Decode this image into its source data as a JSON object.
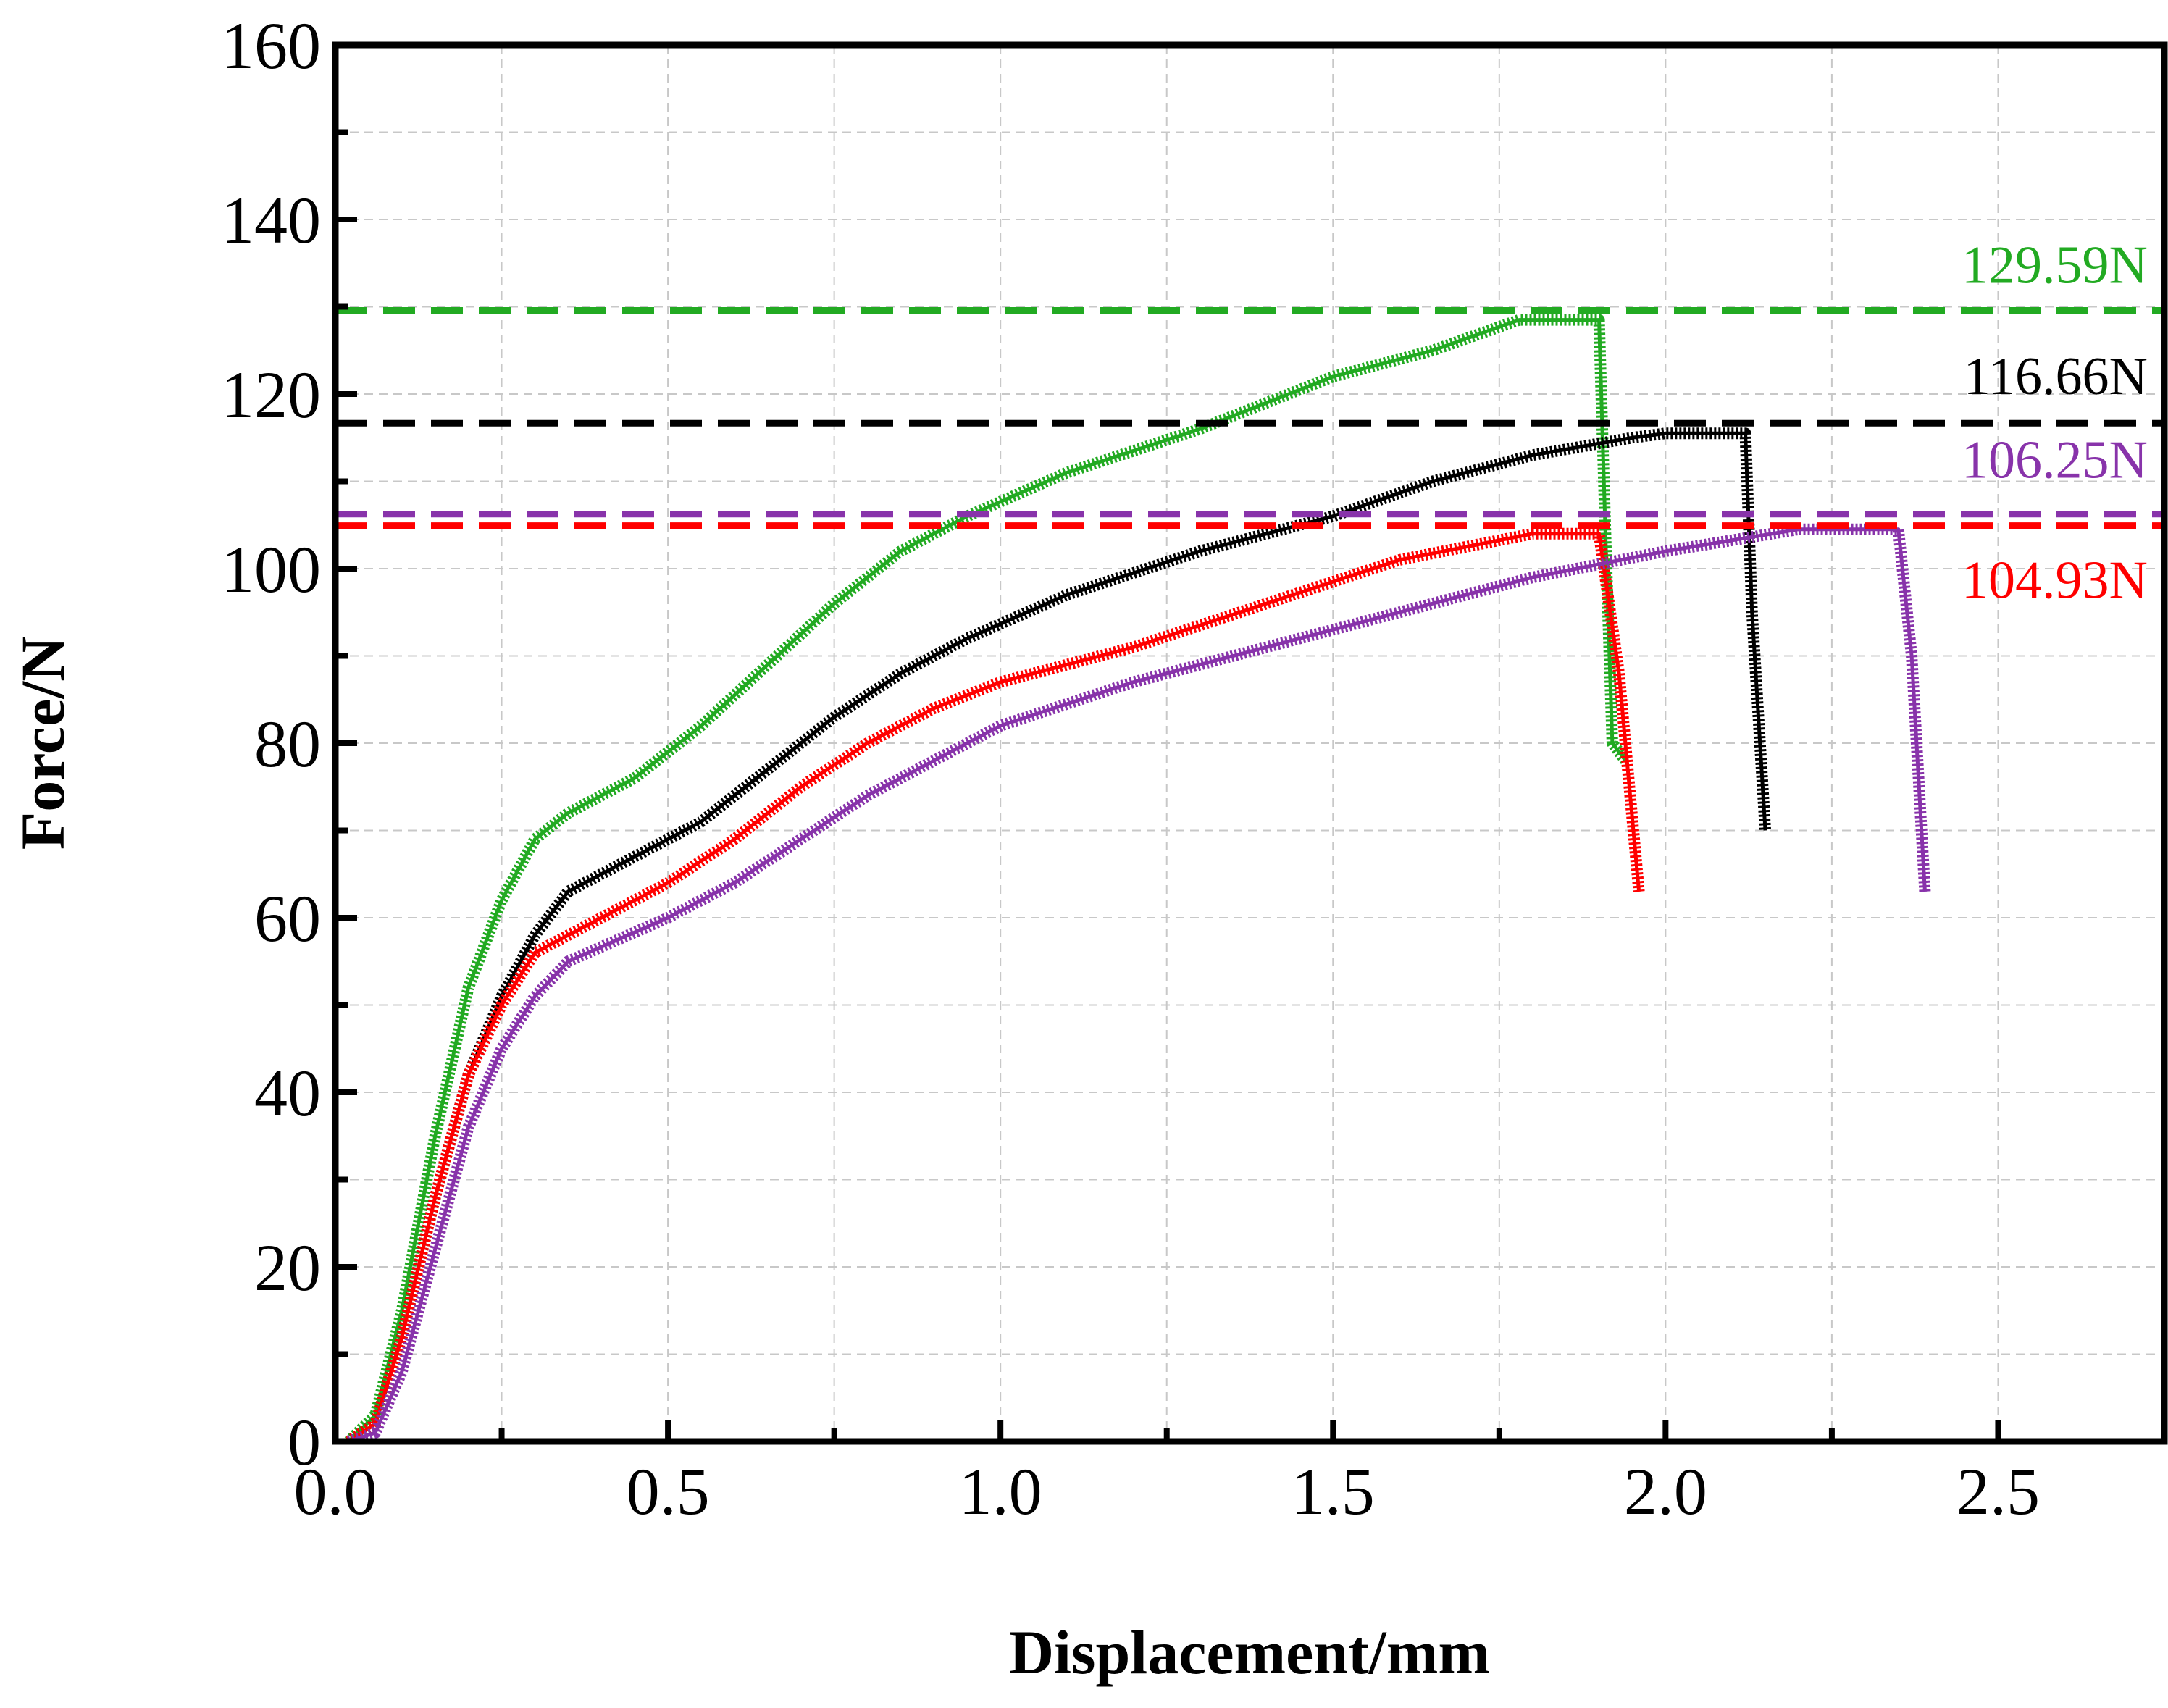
{
  "chart_data": {
    "type": "line",
    "title": "",
    "xlabel": "Displacement/mm",
    "ylabel": "Force/N",
    "xlim": [
      0,
      2.75
    ],
    "ylim": [
      0,
      160
    ],
    "xticks": [
      0.0,
      0.5,
      1.0,
      1.5,
      2.0,
      2.5
    ],
    "xtick_labels": [
      "0.0",
      "0.5",
      "1.0",
      "1.5",
      "2.0",
      "2.5"
    ],
    "yticks": [
      0,
      20,
      40,
      60,
      80,
      100,
      120,
      140,
      160
    ],
    "ytick_labels": [
      "0",
      "20",
      "40",
      "60",
      "80",
      "100",
      "120",
      "140",
      "160"
    ],
    "grid": true,
    "series": [
      {
        "name": "green",
        "color": "#22aa22",
        "x": [
          0.02,
          0.06,
          0.1,
          0.15,
          0.2,
          0.25,
          0.3,
          0.35,
          0.45,
          0.55,
          0.65,
          0.75,
          0.85,
          0.95,
          1.1,
          1.3,
          1.5,
          1.65,
          1.78,
          1.85,
          1.9,
          1.91,
          1.92,
          1.94
        ],
        "y": [
          0,
          3,
          15,
          35,
          52,
          62,
          69,
          72,
          76,
          82,
          89,
          96,
          102,
          106,
          111,
          116,
          122,
          125,
          128.5,
          128.5,
          128.5,
          103,
          80,
          78
        ]
      },
      {
        "name": "black",
        "color": "#000000",
        "x": [
          0.02,
          0.06,
          0.1,
          0.15,
          0.2,
          0.25,
          0.3,
          0.35,
          0.45,
          0.55,
          0.65,
          0.75,
          0.85,
          0.95,
          1.1,
          1.3,
          1.5,
          1.65,
          1.8,
          1.95,
          2.0,
          2.05,
          2.12,
          2.13,
          2.15
        ],
        "y": [
          0,
          2,
          12,
          28,
          42,
          51,
          58,
          63,
          67,
          71,
          77,
          83,
          88,
          92,
          97,
          102,
          106,
          110,
          113,
          115,
          115.5,
          115.5,
          115.5,
          95,
          70
        ]
      },
      {
        "name": "red",
        "color": "#ff0000",
        "x": [
          0.02,
          0.06,
          0.1,
          0.15,
          0.2,
          0.25,
          0.3,
          0.4,
          0.5,
          0.6,
          0.7,
          0.8,
          0.9,
          1.0,
          1.2,
          1.4,
          1.6,
          1.8,
          1.9,
          1.93,
          1.96
        ],
        "y": [
          0,
          2,
          12,
          28,
          42,
          50,
          56,
          60,
          64,
          69,
          75,
          80,
          84,
          87,
          91,
          96,
          101,
          104,
          104,
          88,
          63
        ]
      },
      {
        "name": "purple",
        "color": "#8833aa",
        "x": [
          0.02,
          0.06,
          0.1,
          0.15,
          0.2,
          0.25,
          0.3,
          0.35,
          0.5,
          0.6,
          0.7,
          0.8,
          0.9,
          1.0,
          1.2,
          1.4,
          1.6,
          1.8,
          2.0,
          2.2,
          2.25,
          2.35,
          2.37,
          2.39
        ],
        "y": [
          0,
          1,
          8,
          22,
          36,
          45,
          51,
          55,
          60,
          64,
          69,
          74,
          78,
          82,
          87,
          91,
          95,
          99,
          102,
          104.5,
          104.5,
          104.5,
          90,
          63
        ]
      }
    ],
    "reference_lines": [
      {
        "name": "green-peak",
        "value": 129.59,
        "label": "129.59N",
        "color": "#22aa22"
      },
      {
        "name": "black-peak",
        "value": 116.66,
        "label": "116.66N",
        "color": "#000000"
      },
      {
        "name": "purple-peak",
        "value": 106.25,
        "label": "106.25N",
        "color": "#8833aa"
      },
      {
        "name": "red-peak",
        "value": 104.93,
        "label": "104.93N",
        "color": "#ff0000"
      }
    ]
  }
}
